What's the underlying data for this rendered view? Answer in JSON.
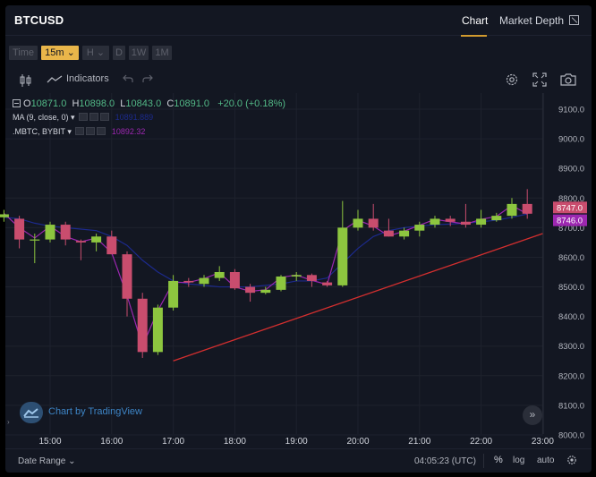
{
  "symbol": "BTCUSD",
  "tabs": {
    "chart": "Chart",
    "depth": "Market Depth"
  },
  "intervals": [
    {
      "label": "Time",
      "active": false
    },
    {
      "label": "15m ⌄",
      "active": true
    },
    {
      "label": "H ⌄",
      "active": false
    },
    {
      "label": "D",
      "active": false
    },
    {
      "label": "1W",
      "active": false
    },
    {
      "label": "1M",
      "active": false
    }
  ],
  "toolbar": {
    "indicators_label": "Indicators"
  },
  "legend": {
    "ohlc": {
      "o_key": "O",
      "o": "10871.0",
      "h_key": "H",
      "h": "10898.0",
      "l_key": "L",
      "l": "10843.0",
      "c_key": "C",
      "c": "10891.0",
      "change": "+20.0 (+0.18%)"
    },
    "ma": {
      "label": "MA (9, close, 0)",
      "value": "10891.889",
      "color": "#1c2a8c"
    },
    "mbtc": {
      "label": ".MBTC, BYBIT",
      "value": "10892.32",
      "color": "#9c27b0"
    }
  },
  "watermark": "Chart by TradingView",
  "bottom": {
    "date_range": "Date Range ⌄",
    "clock": "04:05:23 (UTC)",
    "pct": "%",
    "log": "log",
    "auto": "auto"
  },
  "colors": {
    "up": "#8dc63f",
    "down": "#c94d6e",
    "ma": "#1c2a8c",
    "mbtc": "#9c27b0",
    "trendline": "#d32f2f",
    "background": "#131722"
  },
  "chart_data": {
    "type": "candlestick",
    "y_axis": {
      "min": 8000,
      "max": 9100,
      "ticks": [
        "9100.0",
        "9000.0",
        "8900.0",
        "8800.0",
        "8700.0",
        "8600.0",
        "8500.0",
        "8400.0",
        "8300.0",
        "8200.0",
        "8100.0",
        "8000.0"
      ]
    },
    "x_axis": {
      "ticks": [
        "15:00",
        "16:00",
        "17:00",
        "18:00",
        "19:00",
        "20:00",
        "21:00",
        "22:00",
        "23:00"
      ],
      "tick_hours": [
        15,
        16,
        17,
        18,
        19,
        20,
        21,
        22,
        23
      ]
    },
    "price_labels": [
      {
        "text": "8747.0",
        "value": 8747,
        "bg": "#c94d6e",
        "fg": "#ffffff"
      },
      {
        "text": "8746.0",
        "value": 8746,
        "bg": "#9c27b0",
        "fg": "#ffffff"
      }
    ],
    "trendline": [
      {
        "hour": 17.0,
        "price": 8250
      },
      {
        "hour": 23.0,
        "price": 8680
      }
    ],
    "candles": [
      {
        "t": 14.25,
        "o": 8735,
        "h": 8760,
        "l": 8720,
        "c": 8745
      },
      {
        "t": 14.5,
        "o": 8730,
        "h": 8740,
        "l": 8630,
        "c": 8660
      },
      {
        "t": 14.75,
        "o": 8660,
        "h": 8680,
        "l": 8580,
        "c": 8660
      },
      {
        "t": 15.0,
        "o": 8660,
        "h": 8720,
        "l": 8650,
        "c": 8710
      },
      {
        "t": 15.25,
        "o": 8710,
        "h": 8720,
        "l": 8640,
        "c": 8660
      },
      {
        "t": 15.5,
        "o": 8655,
        "h": 8660,
        "l": 8590,
        "c": 8650
      },
      {
        "t": 15.75,
        "o": 8650,
        "h": 8680,
        "l": 8620,
        "c": 8670
      },
      {
        "t": 16.0,
        "o": 8670,
        "h": 8690,
        "l": 8610,
        "c": 8610
      },
      {
        "t": 16.25,
        "o": 8610,
        "h": 8620,
        "l": 8400,
        "c": 8460
      },
      {
        "t": 16.5,
        "o": 8460,
        "h": 8480,
        "l": 8260,
        "c": 8280
      },
      {
        "t": 16.75,
        "o": 8280,
        "h": 8440,
        "l": 8270,
        "c": 8430
      },
      {
        "t": 17.0,
        "o": 8430,
        "h": 8540,
        "l": 8420,
        "c": 8520
      },
      {
        "t": 17.25,
        "o": 8520,
        "h": 8530,
        "l": 8500,
        "c": 8515
      },
      {
        "t": 17.5,
        "o": 8510,
        "h": 8540,
        "l": 8500,
        "c": 8530
      },
      {
        "t": 17.75,
        "o": 8530,
        "h": 8570,
        "l": 8520,
        "c": 8550
      },
      {
        "t": 18.0,
        "o": 8550,
        "h": 8560,
        "l": 8490,
        "c": 8495
      },
      {
        "t": 18.25,
        "o": 8500,
        "h": 8510,
        "l": 8450,
        "c": 8480
      },
      {
        "t": 18.5,
        "o": 8480,
        "h": 8500,
        "l": 8475,
        "c": 8490
      },
      {
        "t": 18.75,
        "o": 8490,
        "h": 8540,
        "l": 8485,
        "c": 8535
      },
      {
        "t": 19.0,
        "o": 8535,
        "h": 8550,
        "l": 8520,
        "c": 8540
      },
      {
        "t": 19.25,
        "o": 8540,
        "h": 8545,
        "l": 8500,
        "c": 8520
      },
      {
        "t": 19.5,
        "o": 8515,
        "h": 8520,
        "l": 8500,
        "c": 8505
      },
      {
        "t": 19.75,
        "o": 8505,
        "h": 8790,
        "l": 8500,
        "c": 8700
      },
      {
        "t": 20.0,
        "o": 8700,
        "h": 8760,
        "l": 8690,
        "c": 8730
      },
      {
        "t": 20.25,
        "o": 8730,
        "h": 8780,
        "l": 8690,
        "c": 8700
      },
      {
        "t": 20.5,
        "o": 8690,
        "h": 8730,
        "l": 8670,
        "c": 8670
      },
      {
        "t": 20.75,
        "o": 8670,
        "h": 8700,
        "l": 8660,
        "c": 8690
      },
      {
        "t": 21.0,
        "o": 8690,
        "h": 8720,
        "l": 8670,
        "c": 8710
      },
      {
        "t": 21.25,
        "o": 8710,
        "h": 8740,
        "l": 8700,
        "c": 8730
      },
      {
        "t": 21.5,
        "o": 8730,
        "h": 8740,
        "l": 8705,
        "c": 8720
      },
      {
        "t": 21.75,
        "o": 8720,
        "h": 8780,
        "l": 8700,
        "c": 8710
      },
      {
        "t": 22.0,
        "o": 8710,
        "h": 8760,
        "l": 8700,
        "c": 8730
      },
      {
        "t": 22.25,
        "o": 8725,
        "h": 8750,
        "l": 8720,
        "c": 8740
      },
      {
        "t": 22.5,
        "o": 8740,
        "h": 8800,
        "l": 8730,
        "c": 8780
      },
      {
        "t": 22.75,
        "o": 8780,
        "h": 8830,
        "l": 8730,
        "c": 8747
      }
    ],
    "ma_series": [
      8735,
      8730,
      8715,
      8705,
      8700,
      8695,
      8690,
      8670,
      8640,
      8590,
      8550,
      8520,
      8510,
      8505,
      8500,
      8500,
      8500,
      8505,
      8510,
      8520,
      8520,
      8530,
      8580,
      8630,
      8670,
      8690,
      8700,
      8705,
      8710,
      8712,
      8715,
      8720,
      8725,
      8735,
      8746
    ],
    "mbtc_series": [
      8748,
      8700,
      8665,
      8705,
      8670,
      8652,
      8665,
      8615,
      8470,
      8300,
      8420,
      8515,
      8515,
      8528,
      8548,
      8500,
      8485,
      8490,
      8532,
      8540,
      8522,
      8508,
      8690,
      8725,
      8705,
      8672,
      8688,
      8708,
      8728,
      8720,
      8712,
      8728,
      8738,
      8775,
      8746
    ]
  }
}
